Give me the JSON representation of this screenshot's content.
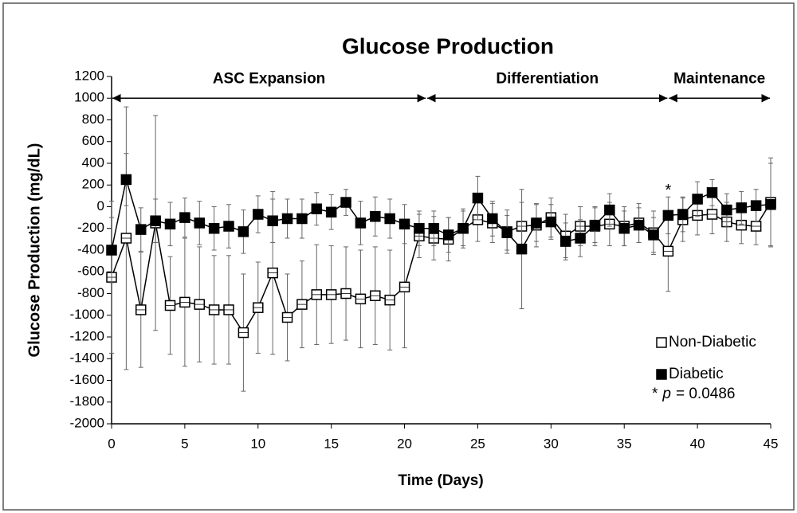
{
  "chart_data": {
    "type": "line",
    "title": "Glucose Production",
    "x_label": "Time (Days)",
    "y_label": "Glucose Production (mg/dL)",
    "xlim": [
      0,
      45
    ],
    "xticks": [
      0,
      5,
      10,
      15,
      20,
      25,
      30,
      35,
      40,
      45
    ],
    "ylim": [
      -2000,
      1200
    ],
    "yticks": [
      -2000,
      -1800,
      -1600,
      -1400,
      -1200,
      -1000,
      -800,
      -600,
      -400,
      -200,
      0,
      200,
      400,
      600,
      800,
      1000,
      1200
    ],
    "x": [
      0,
      1,
      2,
      3,
      4,
      5,
      6,
      7,
      8,
      9,
      10,
      11,
      12,
      13,
      14,
      15,
      16,
      17,
      18,
      19,
      20,
      21,
      22,
      23,
      24,
      25,
      26,
      27,
      28,
      29,
      30,
      31,
      32,
      33,
      34,
      35,
      36,
      37,
      38,
      39,
      40,
      41,
      42,
      43,
      44,
      45
    ],
    "series": [
      {
        "name": "Non-Diabetic",
        "color": "#000",
        "filled": false,
        "values": [
          -650,
          -290,
          -950,
          -150,
          -910,
          -880,
          -900,
          -950,
          -950,
          -1160,
          -930,
          -610,
          -1020,
          -900,
          -810,
          -810,
          -800,
          -850,
          -820,
          -860,
          -740,
          -270,
          -290,
          -300,
          -200,
          -120,
          -150,
          -230,
          -180,
          -170,
          -100,
          -270,
          -180,
          -180,
          -160,
          -180,
          -150,
          -240,
          -410,
          -120,
          -80,
          -70,
          -140,
          -170,
          -180,
          40
        ],
        "errors": [
          700,
          1210,
          530,
          990,
          450,
          590,
          530,
          500,
          500,
          540,
          420,
          750,
          400,
          400,
          460,
          450,
          430,
          450,
          450,
          460,
          560,
          200,
          200,
          200,
          180,
          200,
          180,
          200,
          220,
          200,
          180,
          200,
          180,
          180,
          200,
          180,
          180,
          200,
          370,
          200,
          180,
          180,
          180,
          170,
          170,
          410
        ]
      },
      {
        "name": "Diabetic",
        "color": "#000",
        "filled": true,
        "values": [
          -400,
          250,
          -210,
          -130,
          -160,
          -100,
          -150,
          -200,
          -180,
          -230,
          -70,
          -130,
          -110,
          -110,
          -20,
          -50,
          40,
          -150,
          -90,
          -110,
          -160,
          -200,
          -200,
          -260,
          -200,
          80,
          -110,
          -240,
          -390,
          -150,
          -140,
          -320,
          -290,
          -170,
          -30,
          -200,
          -170,
          -260,
          -80,
          -70,
          70,
          130,
          -30,
          -10,
          10,
          20
        ],
        "errors": [
          300,
          240,
          200,
          200,
          200,
          180,
          200,
          200,
          200,
          200,
          170,
          200,
          180,
          180,
          150,
          160,
          120,
          200,
          180,
          180,
          180,
          160,
          160,
          160,
          160,
          200,
          160,
          160,
          550,
          170,
          160,
          170,
          170,
          160,
          150,
          160,
          160,
          160,
          170,
          160,
          160,
          120,
          150,
          150,
          150,
          380
        ]
      }
    ],
    "phases": [
      {
        "label": "ASC Expansion",
        "start": 0,
        "end": 21.5
      },
      {
        "label": "Differentiation",
        "start": 21.5,
        "end": 38
      },
      {
        "label": "Maintenance",
        "start": 38,
        "end": 45
      }
    ],
    "phase_arrow_y": 1000,
    "star": {
      "text": "*",
      "x": 38,
      "y": 70
    },
    "note": [
      "*",
      "p",
      "= 0.0486"
    ]
  }
}
